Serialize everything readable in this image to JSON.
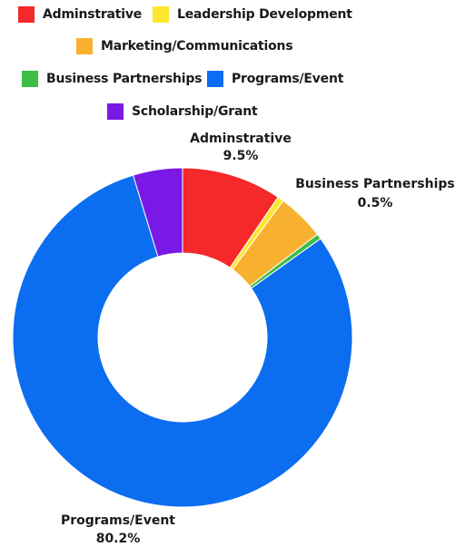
{
  "chart_data": {
    "type": "donut",
    "series": [
      {
        "name": "Adminstrative",
        "value": 9.5,
        "color": "#f5282a"
      },
      {
        "name": "Leadership Development",
        "value": 0.6,
        "color": "#ffe62e"
      },
      {
        "name": "Marketing/Communications",
        "value": 4.5,
        "color": "#f7b12f"
      },
      {
        "name": "Business Partnerships",
        "value": 0.5,
        "color": "#3cbd45"
      },
      {
        "name": "Programs/Event",
        "value": 80.2,
        "color": "#0b6df0"
      },
      {
        "name": "Scholarship/Grant",
        "value": 4.7,
        "color": "#7a18e6"
      }
    ],
    "data_labels": [
      {
        "name": "Adminstrative",
        "value": "9.5%"
      },
      {
        "name": "Business Partnerships",
        "value": "0.5%"
      },
      {
        "name": "Programs/Event",
        "value": "80.2%"
      }
    ],
    "legend_position": "top"
  }
}
